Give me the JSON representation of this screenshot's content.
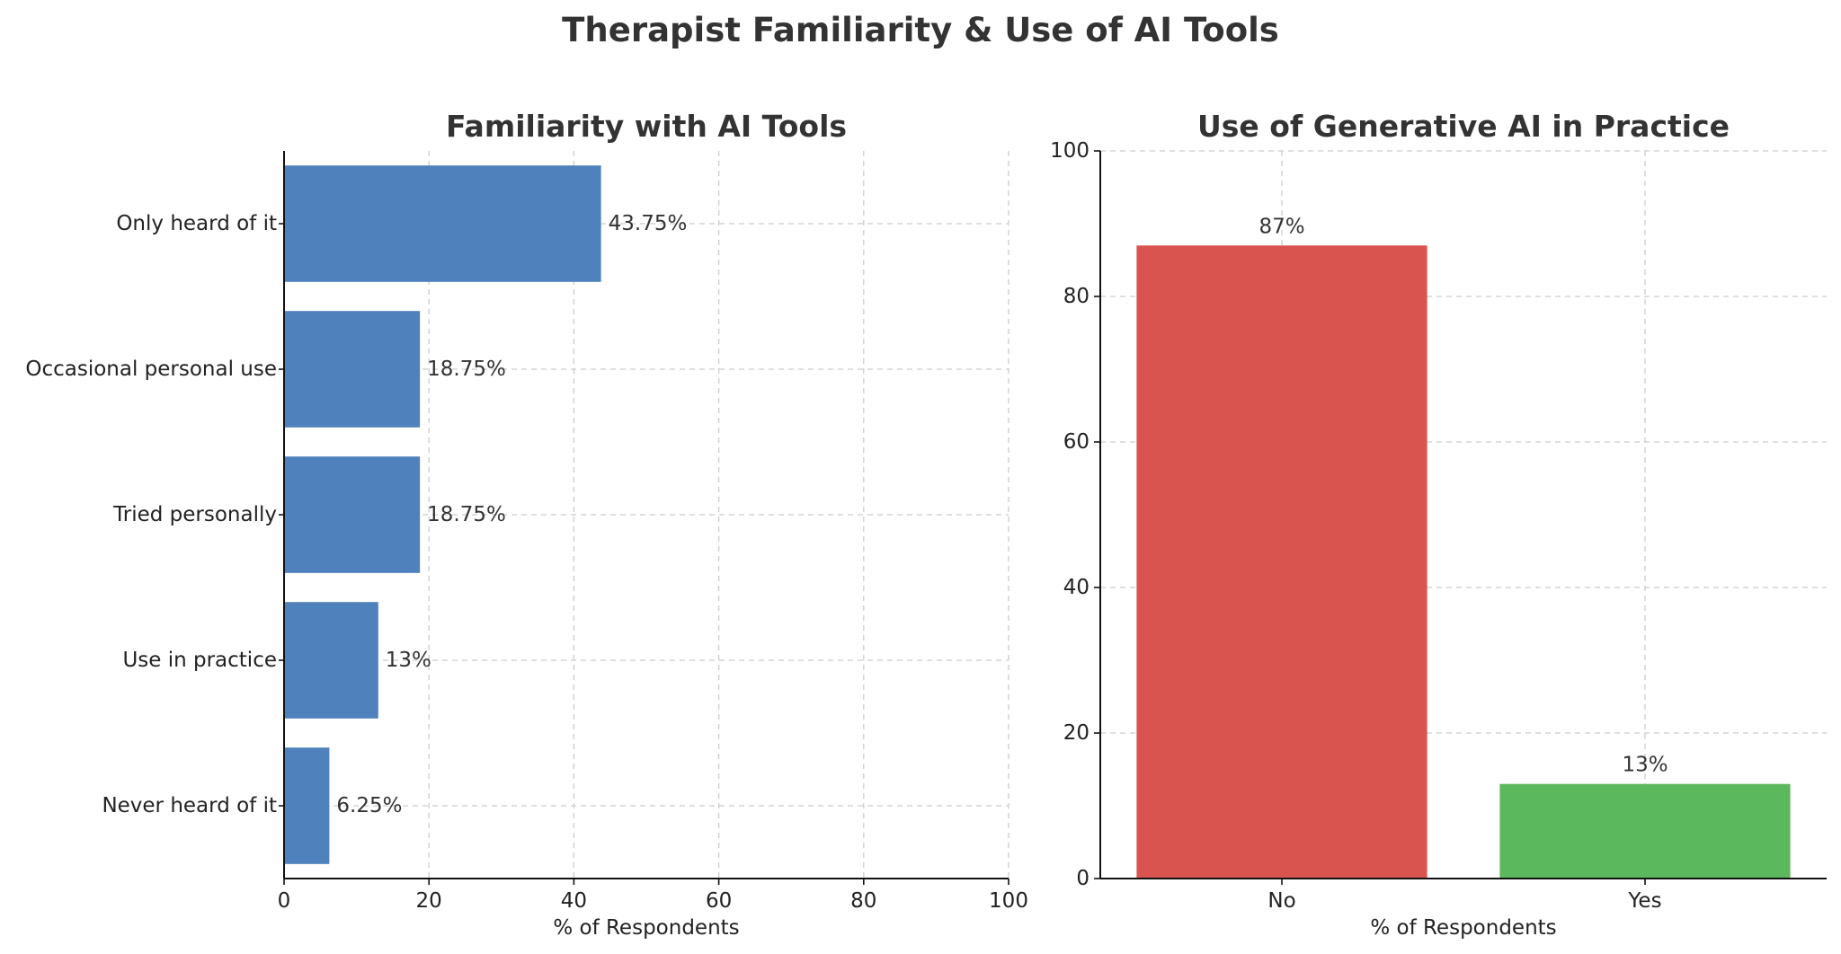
{
  "figure": {
    "title": "Therapist Familiarity & Use of AI Tools"
  },
  "chart_data": [
    {
      "type": "bar",
      "orientation": "horizontal",
      "title": "Familiarity with AI Tools",
      "categories": [
        "Only heard of it",
        "Occasional personal use",
        "Tried personally",
        "Use in practice",
        "Never heard of it"
      ],
      "values": [
        43.75,
        18.75,
        18.75,
        13,
        6.25
      ],
      "value_labels": [
        "43.75%",
        "18.75%",
        "18.75%",
        "13%",
        "6.25%"
      ],
      "xlabel": "% of Respondents",
      "ylabel": "",
      "xlim": [
        0,
        100
      ],
      "xticks": [
        0,
        20,
        40,
        60,
        80,
        100
      ],
      "grid": true,
      "colors": [
        "#4f81bd"
      ]
    },
    {
      "type": "bar",
      "orientation": "vertical",
      "title": "Use of Generative AI in Practice",
      "categories": [
        "No",
        "Yes"
      ],
      "values": [
        87,
        13
      ],
      "value_labels": [
        "87%",
        "13%"
      ],
      "xlabel": "% of Respondents",
      "ylabel": "",
      "ylim": [
        0,
        100
      ],
      "yticks": [
        0,
        20,
        40,
        60,
        80,
        100
      ],
      "grid": true,
      "colors": [
        "#d9534f",
        "#5cb85c"
      ]
    }
  ]
}
